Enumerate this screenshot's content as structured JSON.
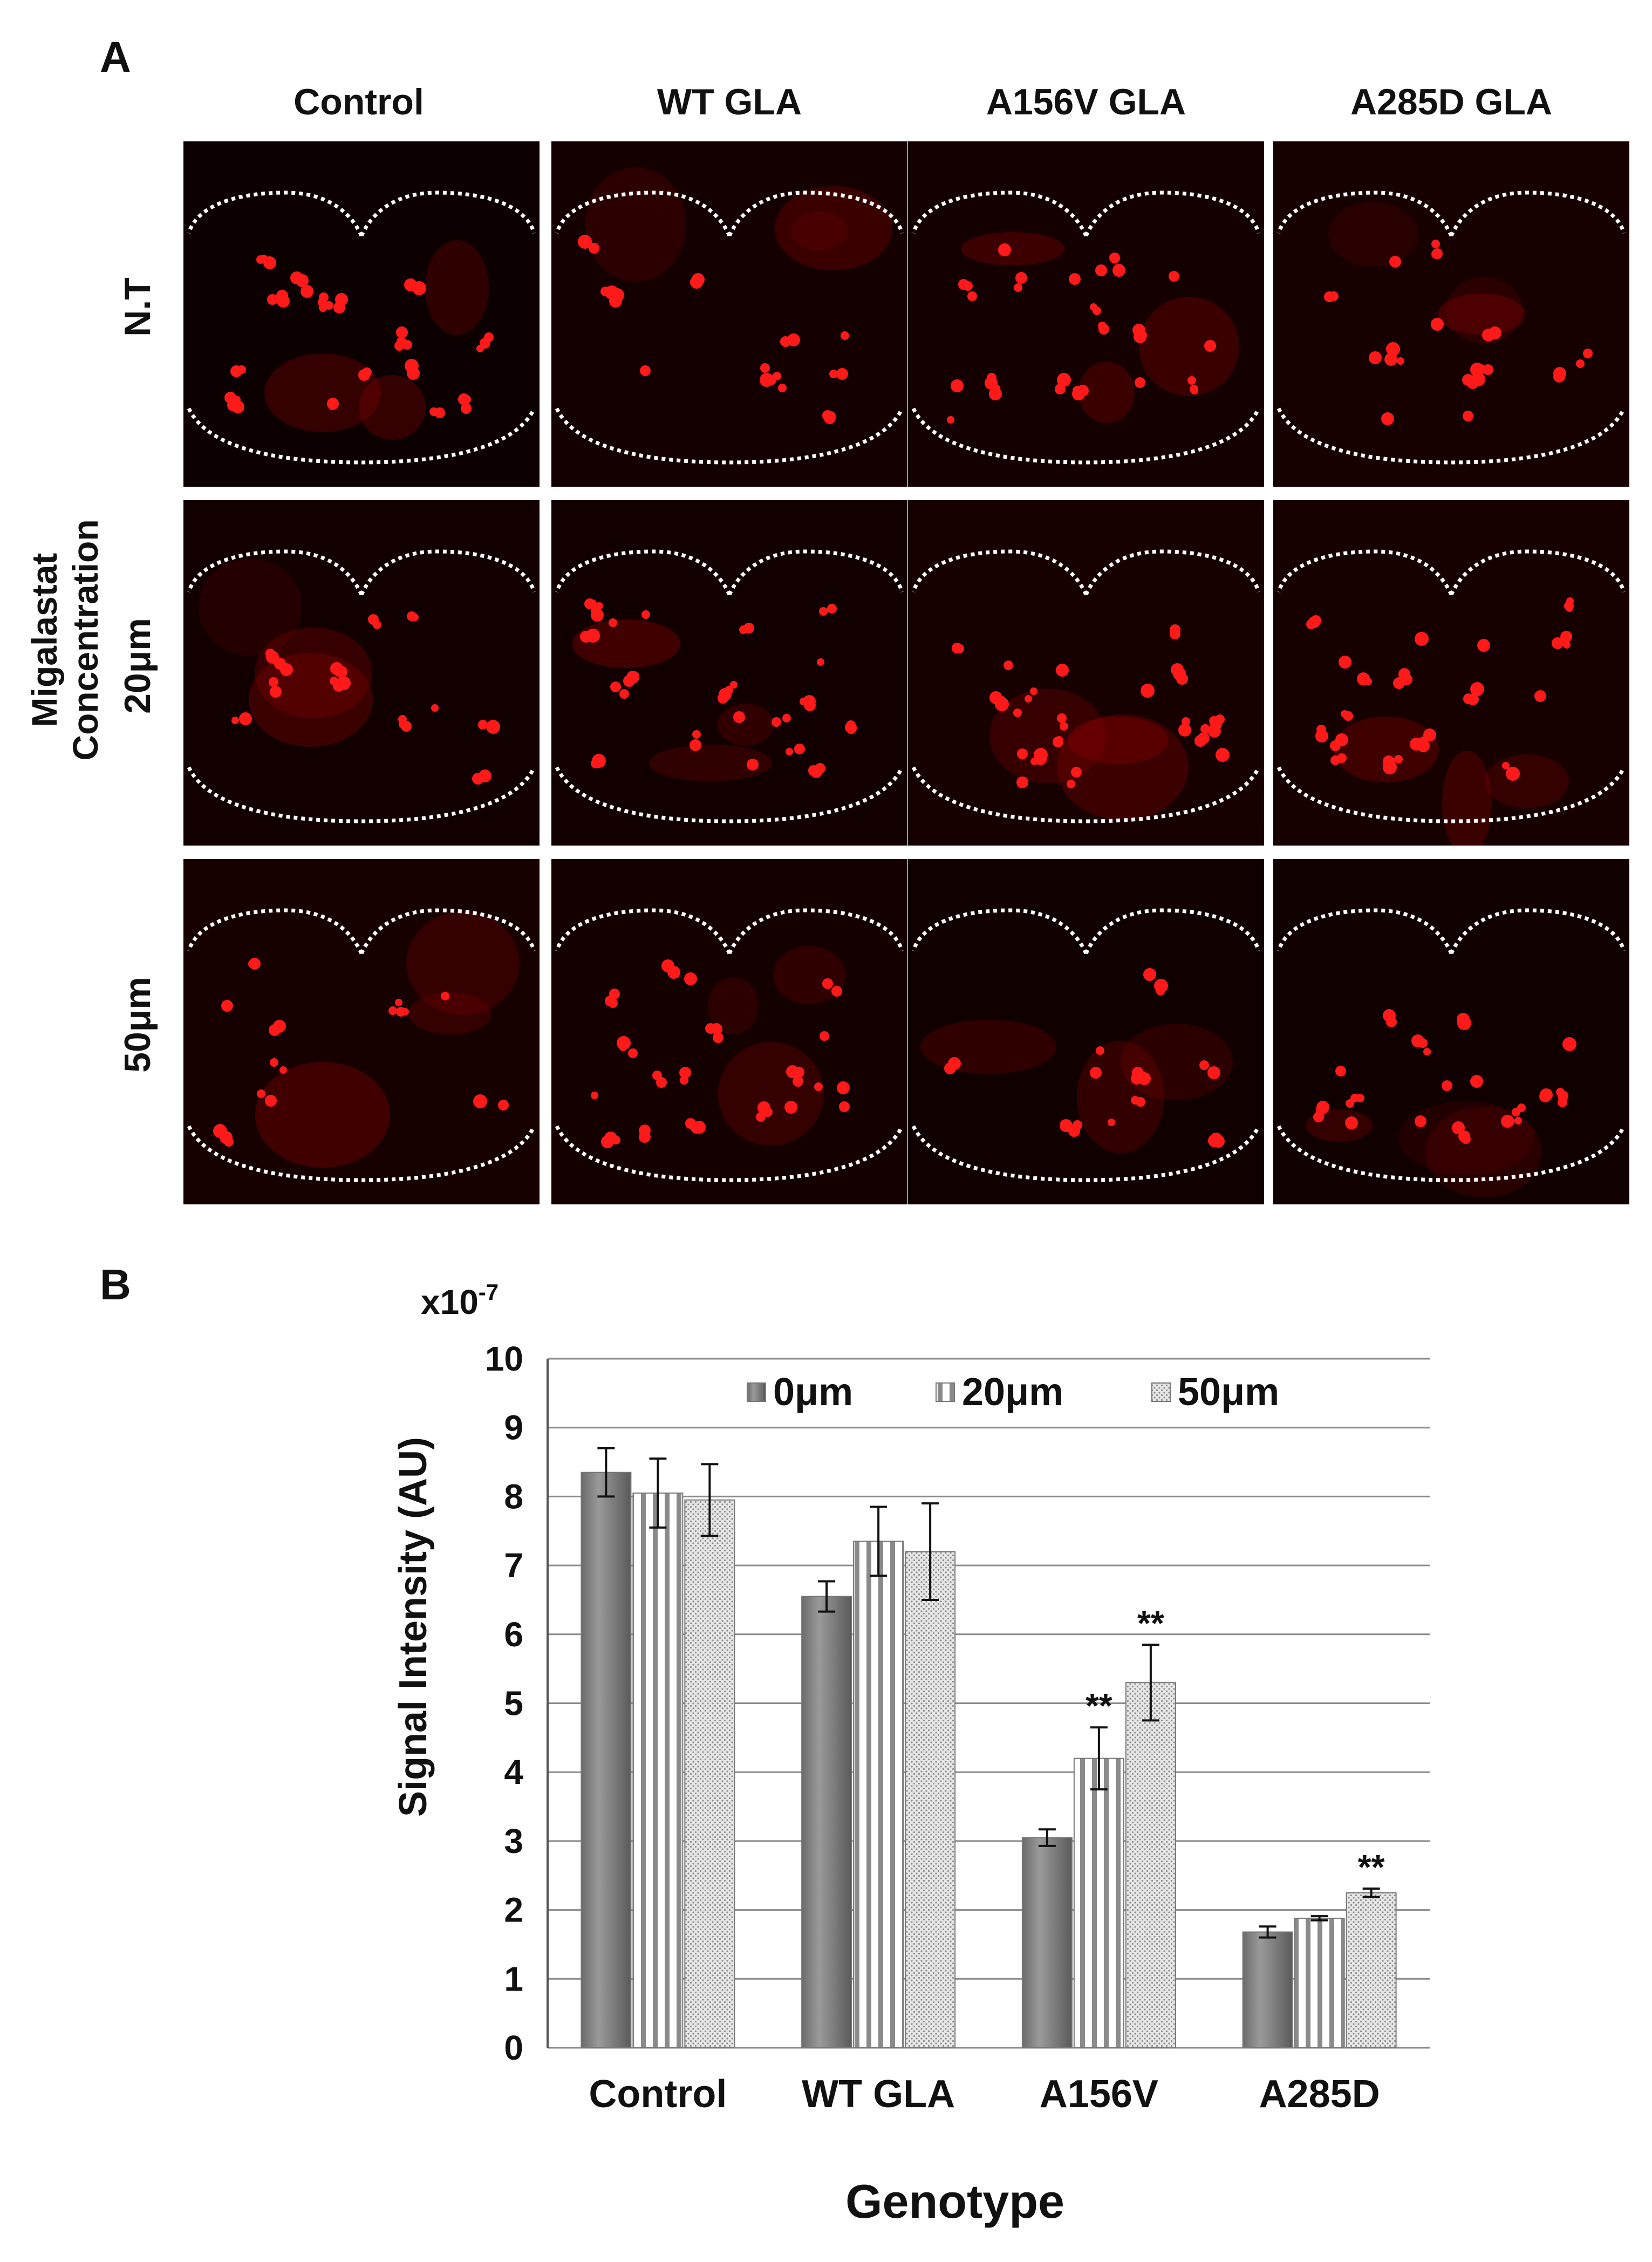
{
  "panel_a": {
    "letter": "A",
    "columns": [
      "Control",
      "WT GLA",
      "A156V GLA",
      "A285D GLA"
    ],
    "rows": [
      "N.T",
      "20μm",
      "50μm"
    ],
    "side_label": "Migalastat Concentration",
    "signal_color": "#ff1a1a",
    "outline_color": "#ffffff"
  },
  "panel_b": {
    "letter": "B",
    "scale_label_base": "x10",
    "scale_label_exp": "-7"
  },
  "chart_data": {
    "type": "bar",
    "categories": [
      "Control",
      "WT GLA",
      "A156V",
      "A285D"
    ],
    "series": [
      {
        "name": "0μm",
        "pattern": "solid-gray",
        "values": [
          8.35,
          6.55,
          3.05,
          1.68
        ],
        "errors": [
          0.35,
          0.22,
          0.12,
          0.08
        ]
      },
      {
        "name": "20μm",
        "pattern": "vertical-stripes",
        "values": [
          8.05,
          7.35,
          4.2,
          1.88
        ],
        "errors": [
          0.5,
          0.5,
          0.45,
          0.03
        ]
      },
      {
        "name": "50μm",
        "pattern": "dotted",
        "values": [
          7.95,
          7.2,
          5.3,
          2.25
        ],
        "errors": [
          0.52,
          0.7,
          0.55,
          0.06
        ]
      }
    ],
    "significance": [
      {
        "category": "A156V",
        "series": "20μm",
        "mark": "**"
      },
      {
        "category": "A156V",
        "series": "50μm",
        "mark": "**"
      },
      {
        "category": "A285D",
        "series": "50μm",
        "mark": "**"
      }
    ],
    "xlabel": "Genotype",
    "ylabel": "Signal Intensity (AU)",
    "ylim": [
      0,
      10
    ],
    "yticks": [
      "0",
      "1",
      "2",
      "3",
      "4",
      "5",
      "6",
      "7",
      "8",
      "9",
      "10"
    ],
    "grid": true,
    "legend_position": "top-right"
  }
}
